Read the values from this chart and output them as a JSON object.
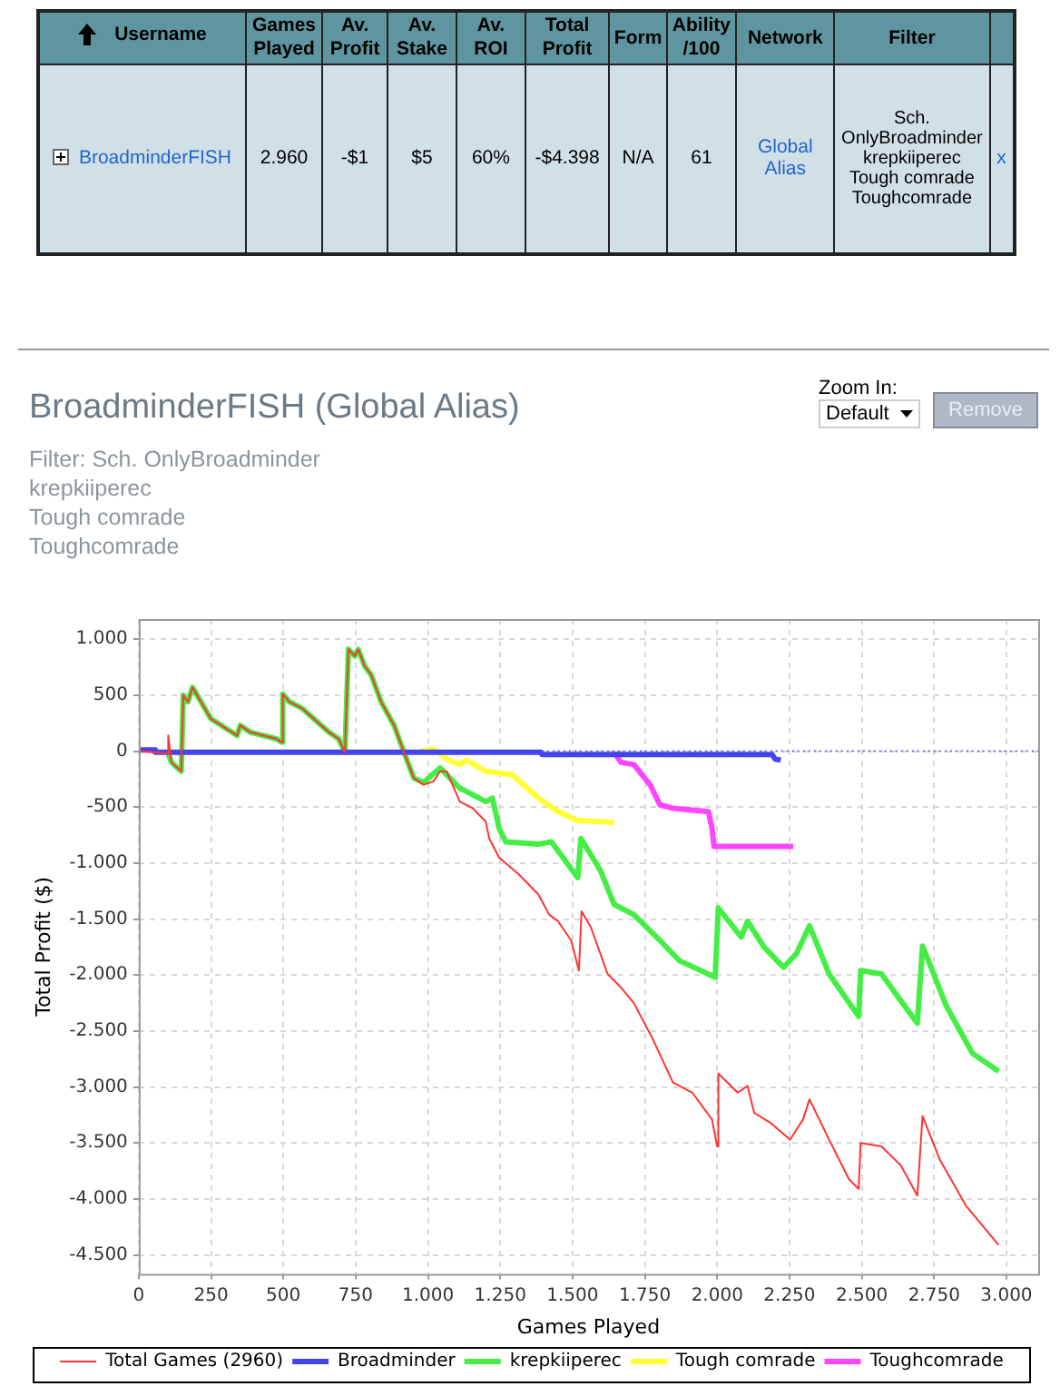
{
  "chart_data": [
    {
      "type": "other",
      "categories": [
        "Username",
        "Games Played",
        "Av. Profit",
        "Av. Stake",
        "Av. ROI",
        "Total Profit",
        "Form",
        "Ability /100",
        "Network",
        "Filter"
      ],
      "annotations": [
        "BroadminderFISH",
        "2.960",
        "-$1",
        "$5",
        "60%",
        "-$4.398",
        "N/A",
        "61",
        "Global Alias",
        "Sch. OnlyBroadminder krepkiiperec Tough comrade Toughcomrade",
        "x"
      ]
    },
    {
      "type": "line",
      "title": "BroadminderFISH (Global Alias)",
      "subtitle": "Filter: Sch. OnlyBroadminder\nkrepkiiperec\nTough comrade\nToughcomrade",
      "xlabel": "Games Played",
      "ylabel": "Total Profit ($)",
      "annotations": [
        "Zoom In:",
        "Default",
        "Remove"
      ],
      "xlim": [
        0,
        3110
      ],
      "xticks": [
        0,
        250,
        500,
        750,
        {
          "value": 1000,
          "label": "1.000"
        },
        {
          "value": 1250,
          "label": "1.250"
        },
        {
          "value": 1500,
          "label": "1.500"
        },
        {
          "value": 1750,
          "label": "1.750"
        },
        {
          "value": 2000,
          "label": "2.000"
        },
        {
          "value": 2250,
          "label": "2.250"
        },
        {
          "value": 2500,
          "label": "2.500"
        },
        {
          "value": 2750,
          "label": "2.750"
        },
        {
          "value": 3000,
          "label": "3.000"
        }
      ],
      "ylim": [
        -4670,
        1180
      ],
      "yticks": [
        {
          "value": -4500,
          "label": "-4.500"
        },
        {
          "value": -4000,
          "label": "-4.000"
        },
        {
          "value": -3500,
          "label": "-3.500"
        },
        {
          "value": -3000,
          "label": "-3.000"
        },
        {
          "value": -2500,
          "label": "-2.500"
        },
        {
          "value": -2000,
          "label": "-2.000"
        },
        {
          "value": -1500,
          "label": "-1.500"
        },
        {
          "value": -1000,
          "label": "-1.000"
        },
        {
          "value": -500,
          "label": "-500"
        },
        0,
        500,
        {
          "value": 1000,
          "label": "1.000"
        }
      ],
      "grid": true,
      "legend": "bottom",
      "marker": "none",
      "line_style": "solid",
      "ref_lines": [
        {
          "axis": "y",
          "value": 0,
          "color": "#6666ff",
          "line_style": "dotted"
        }
      ],
      "series": [
        {
          "name": "Total Games (2960)",
          "color": "#ff3333",
          "x": [
            0,
            102,
            102,
            113,
            147,
            154,
            170,
            186,
            249,
            340,
            351,
            385,
            476,
            494,
            498,
            521,
            566,
            657,
            691,
            713,
            725,
            747,
            759,
            781,
            804,
            838,
            883,
            917,
            951,
            985,
            1019,
            1042,
            1065,
            1110,
            1155,
            1200,
            1212,
            1246,
            1314,
            1382,
            1419,
            1450,
            1495,
            1522,
            1531,
            1563,
            1621,
            1667,
            1712,
            1779,
            1847,
            1914,
            1982,
            2000,
            2004,
            2071,
            2105,
            2128,
            2184,
            2252,
            2297,
            2319,
            2387,
            2455,
            2489,
            2496,
            2568,
            2635,
            2692,
            2710,
            2770,
            2860,
            2973
          ],
          "values": [
            0,
            -20,
            140,
            -100,
            -180,
            500,
            440,
            570,
            290,
            140,
            230,
            170,
            110,
            80,
            510,
            440,
            380,
            170,
            110,
            -10,
            910,
            850,
            910,
            760,
            680,
            440,
            230,
            -10,
            -240,
            -300,
            -270,
            -180,
            -180,
            -450,
            -510,
            -630,
            -780,
            -950,
            -1100,
            -1280,
            -1460,
            -1520,
            -1690,
            -1960,
            -1430,
            -1570,
            -1990,
            -2110,
            -2250,
            -2580,
            -2960,
            -3050,
            -3290,
            -3530,
            -2880,
            -3050,
            -2990,
            -3230,
            -3320,
            -3470,
            -3290,
            -3110,
            -3470,
            -3820,
            -3910,
            -3500,
            -3530,
            -3700,
            -3970,
            -3260,
            -3650,
            -4060,
            -4410
          ]
        },
        {
          "name": "Broadminder",
          "color": "#4444ee",
          "x": [
            0,
            55,
            57,
            1390,
            1395,
            2190,
            2200,
            2220
          ],
          "values": [
            10,
            10,
            -10,
            -10,
            -30,
            -30,
            -70,
            -80
          ]
        },
        {
          "name": "krepkiiperec",
          "color": "#44ee44",
          "x": [
            102,
            113,
            147,
            154,
            170,
            186,
            249,
            340,
            351,
            385,
            476,
            494,
            498,
            521,
            566,
            657,
            691,
            713,
            725,
            747,
            759,
            781,
            804,
            838,
            883,
            917,
            951,
            985,
            1042,
            1110,
            1200,
            1223,
            1246,
            1269,
            1382,
            1427,
            1518,
            1529,
            1597,
            1644,
            1712,
            1802,
            1869,
            1993,
            2004,
            2083,
            2105,
            2162,
            2229,
            2274,
            2319,
            2387,
            2489,
            2496,
            2568,
            2635,
            2692,
            2710,
            2793,
            2883,
            2973
          ],
          "values": [
            -20,
            -100,
            -180,
            500,
            440,
            570,
            290,
            140,
            230,
            170,
            110,
            80,
            510,
            440,
            380,
            170,
            110,
            -10,
            910,
            850,
            910,
            760,
            680,
            440,
            230,
            -10,
            -240,
            -280,
            -150,
            -330,
            -450,
            -420,
            -690,
            -810,
            -830,
            -810,
            -1130,
            -780,
            -1070,
            -1370,
            -1460,
            -1690,
            -1870,
            -2020,
            -1400,
            -1660,
            -1520,
            -1750,
            -1930,
            -1810,
            -1560,
            -1990,
            -2370,
            -1960,
            -1990,
            -2230,
            -2430,
            -1740,
            -2280,
            -2700,
            -2860
          ]
        },
        {
          "name": "Tough comrade",
          "color": "#ffff33",
          "x": [
            974,
            1019,
            1065,
            1110,
            1133,
            1200,
            1291,
            1382,
            1450,
            1518,
            1608,
            1644
          ],
          "values": [
            0,
            20,
            -70,
            -120,
            -80,
            -180,
            -210,
            -420,
            -540,
            -620,
            -630,
            -640
          ]
        },
        {
          "name": "Toughcomrade",
          "color": "#ff44ff",
          "x": [
            1644,
            1667,
            1712,
            1768,
            1802,
            1847,
            1970,
            1982,
            1989,
            2263
          ],
          "values": [
            -10,
            -100,
            -120,
            -300,
            -480,
            -510,
            -540,
            -690,
            -850,
            -850
          ]
        }
      ]
    }
  ]
}
